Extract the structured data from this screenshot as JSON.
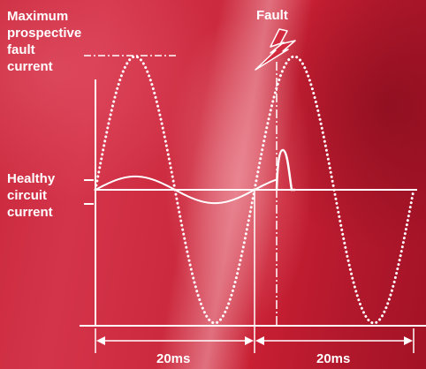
{
  "labels": {
    "max_fault_line1": "Maximum",
    "max_fault_line2": "prospective",
    "max_fault_line3": "fault",
    "max_fault_line4": "current",
    "fault": "Fault",
    "healthy_line1": "Healthy",
    "healthy_line2": "circuit",
    "healthy_line3": "current",
    "period_left": "20ms",
    "period_right": "20ms"
  },
  "colors": {
    "stroke": "#ffffff",
    "background_red": "#c9283b"
  },
  "icons": {
    "fault": "lightning-bolt-icon"
  },
  "waveforms": {
    "prospective_fault_current": {
      "style": "dotted",
      "cycles_shown": 2
    },
    "healthy_circuit_current": {
      "style": "solid",
      "relative_amplitude": 0.1
    },
    "fault_let_through_current": {
      "style": "solid",
      "shape": "short spike after fault"
    }
  }
}
